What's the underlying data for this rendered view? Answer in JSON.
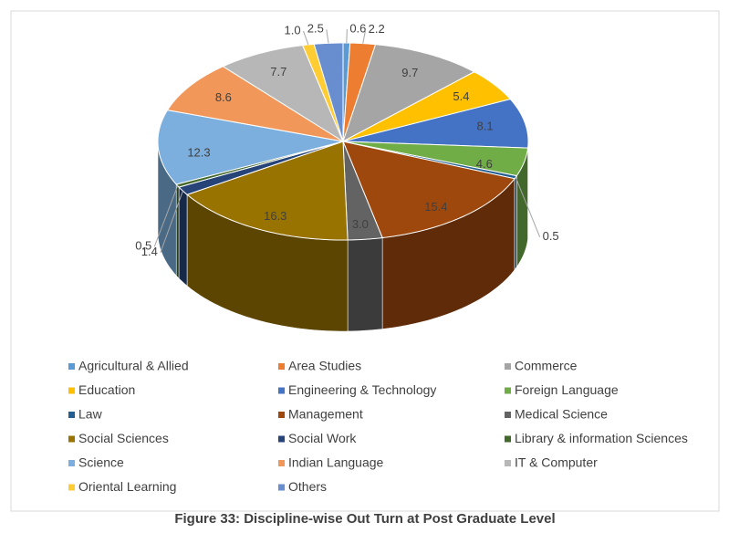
{
  "chart_data": {
    "type": "pie3d",
    "title": "Figure 33: Discipline-wise Out Turn at Post Graduate Level",
    "categories": [
      "Agricultural & Allied",
      "Area Studies",
      "Commerce",
      "Education",
      "Engineering & Technology",
      "Foreign Language",
      "Law",
      "Management",
      "Medical Science",
      "Social Sciences",
      "Social Work",
      "Library & information Sciences",
      "Science",
      "Indian Language",
      "IT & Computer",
      "Oriental Learning",
      "Others"
    ],
    "values": [
      0.6,
      2.2,
      9.7,
      5.4,
      8.1,
      4.6,
      0.5,
      15.4,
      3.0,
      16.3,
      1.4,
      0.5,
      12.3,
      8.6,
      7.7,
      1.0,
      2.5
    ],
    "value_labels": [
      "0.6",
      "2.2",
      "9.7",
      "5.4",
      "8.1",
      "4.6",
      "0.5",
      "15.4",
      "3.0",
      "16.3",
      "1.4",
      "0.5",
      "12.3",
      "8.6",
      "7.7",
      "1.0",
      "2.5"
    ],
    "colors": [
      "#5b9bd5",
      "#ed7d31",
      "#a5a5a5",
      "#ffc000",
      "#4472c4",
      "#70ad47",
      "#255e91",
      "#9e480e",
      "#636363",
      "#997300",
      "#264478",
      "#43682b",
      "#7cafdd",
      "#f1975a",
      "#b7b7b7",
      "#ffcd33",
      "#698ed0"
    ],
    "legend": "bottom"
  }
}
